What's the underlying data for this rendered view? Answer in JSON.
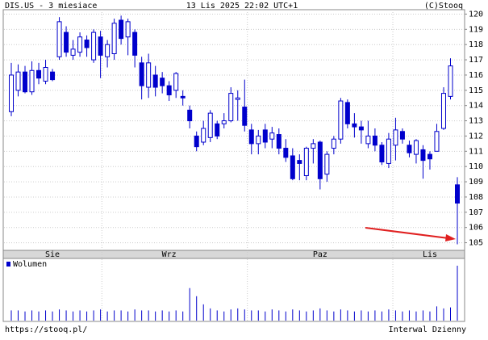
{
  "chart_data": {
    "type": "candlestick",
    "title": "DIS.US - 3 miesiace",
    "subtitle": "13 Lis 2025 22:02 UTC+1",
    "source": "(C)Stooq",
    "footer_left": "https://stooq.pl/",
    "footer_right": "Interwal Dzienny",
    "color": "#0000cc",
    "categories": [
      null,
      null,
      null,
      null,
      null,
      null,
      "Sie",
      null,
      null,
      null,
      null,
      null,
      null,
      null,
      null,
      null,
      null,
      null,
      null,
      null,
      null,
      null,
      null,
      "Wrz",
      null,
      null,
      null,
      null,
      null,
      null,
      null,
      null,
      null,
      null,
      null,
      null,
      null,
      null,
      null,
      null,
      null,
      null,
      null,
      null,
      null,
      "Paz",
      null,
      null,
      null,
      null,
      null,
      null,
      null,
      null,
      null,
      null,
      null,
      null,
      null,
      null,
      null,
      "Lis",
      null,
      null,
      null,
      null
    ],
    "open": [
      113.6,
      115,
      116.2,
      114.9,
      116.3,
      115.6,
      116.2,
      117.2,
      118.8,
      117.3,
      117.5,
      118.3,
      117,
      118.5,
      117.2,
      117.4,
      119.6,
      118.5,
      118.8,
      116.8,
      115.2,
      116,
      115.8,
      115.3,
      115,
      114.6,
      113.7,
      112,
      111.6,
      111.9,
      112.8,
      112.8,
      113,
      114.4,
      113.9,
      112.4,
      111.5,
      112.4,
      111.8,
      112.1,
      111.2,
      110.7,
      110.4,
      109.4,
      111.2,
      111.6,
      109.5,
      111.2,
      111.8,
      114.2,
      112.8,
      112.6,
      111.5,
      112,
      111.4,
      110.2,
      111.4,
      112.3,
      111.4,
      110.8,
      111.1,
      110.8,
      111,
      112.5,
      114.6,
      108.8
    ],
    "high": [
      116.8,
      116.7,
      116.6,
      116.9,
      116.8,
      117,
      116.4,
      119.8,
      119.2,
      118.3,
      118.8,
      118.6,
      119,
      118.9,
      118.3,
      119.7,
      119.9,
      119.7,
      119,
      117.2,
      117.4,
      116.6,
      116.2,
      115.6,
      116.2,
      115,
      114,
      112.3,
      113,
      113.7,
      113,
      113.5,
      115.2,
      115,
      115.7,
      112.8,
      112.4,
      112.8,
      112.6,
      112.5,
      111.8,
      111.2,
      110.8,
      111.3,
      111.8,
      111.7,
      111,
      112,
      114.5,
      114.4,
      113.5,
      113,
      113,
      112.5,
      111.6,
      112.2,
      113.2,
      112.5,
      111.7,
      111.8,
      111.4,
      111,
      112.8,
      115.2,
      117.1,
      109.3
    ],
    "low": [
      113.3,
      114.6,
      114.8,
      114.7,
      115.4,
      115.4,
      115.6,
      117,
      117.2,
      117,
      117.2,
      117.2,
      116.8,
      115.8,
      116.5,
      117,
      118,
      117.3,
      116.5,
      114.4,
      114.5,
      114.6,
      114.8,
      114.3,
      114.5,
      114,
      112.5,
      111,
      111.4,
      111.6,
      111.8,
      112.5,
      112.9,
      113,
      112.3,
      110.8,
      110.8,
      111.2,
      111.2,
      110.8,
      110.3,
      109.1,
      109.1,
      109.1,
      110.2,
      108.5,
      109,
      110.8,
      111.5,
      112.5,
      111.9,
      111.5,
      111.2,
      111,
      110.1,
      109.9,
      110.4,
      111.5,
      110.6,
      110.2,
      109.2,
      109.8,
      111,
      112.4,
      114.4,
      104.9
    ],
    "close": [
      116,
      116.2,
      114.9,
      116.3,
      115.8,
      116.5,
      115.7,
      119.5,
      117.5,
      117.7,
      118.5,
      117.8,
      118.8,
      117.3,
      118,
      119.4,
      118.4,
      119.5,
      117.3,
      115.3,
      116.8,
      115.2,
      115.3,
      114.7,
      116.1,
      114.5,
      113,
      111.3,
      112.5,
      113.5,
      112,
      113,
      114.8,
      114.5,
      112.7,
      111.5,
      112,
      111.6,
      112.2,
      111.2,
      110.6,
      109.2,
      110.2,
      111.2,
      111.5,
      109.2,
      110.8,
      111.8,
      114.3,
      112.8,
      112.6,
      112.4,
      112,
      111.4,
      110.3,
      111.8,
      112.4,
      111.8,
      110.9,
      111.7,
      110.4,
      110.5,
      112.3,
      114.8,
      116.6,
      107.6
    ],
    "volume": {
      "name": "Wolumen",
      "values": [
        10,
        10,
        9,
        10,
        9,
        10,
        9,
        11,
        10,
        9,
        10,
        9,
        10,
        11,
        9,
        10,
        10,
        9,
        11,
        10,
        10,
        9,
        10,
        9,
        10,
        9,
        32,
        24,
        16,
        12,
        10,
        9,
        11,
        12,
        11,
        10,
        10,
        9,
        11,
        10,
        9,
        11,
        10,
        9,
        10,
        12,
        10,
        9,
        11,
        10,
        9,
        10,
        9,
        10,
        9,
        11,
        10,
        9,
        10,
        9,
        10,
        9,
        14,
        12,
        13,
        54
      ]
    },
    "ylim": [
      104.5,
      120.5
    ],
    "yticks": [
      105,
      106,
      107,
      108,
      109,
      110,
      111,
      112,
      113,
      114,
      115,
      116,
      117,
      118,
      119,
      120
    ],
    "grid": true
  }
}
